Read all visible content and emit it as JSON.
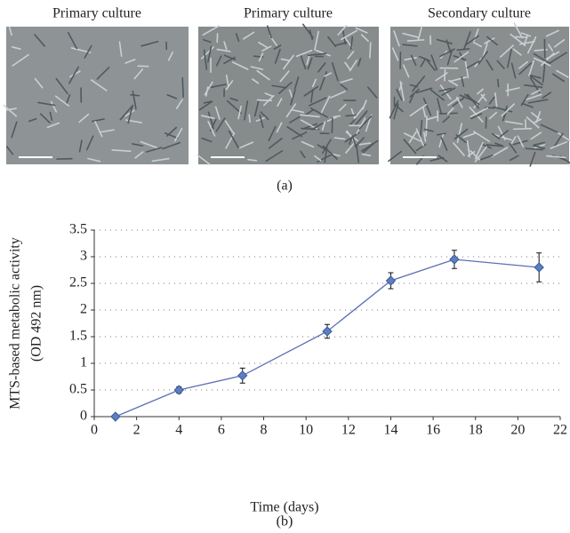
{
  "panel_a": {
    "titles": [
      "Primary culture",
      "Primary culture",
      "Secondary culture"
    ],
    "label": "(a)"
  },
  "panel_b": {
    "label": "(b)"
  },
  "chart_data": {
    "type": "line",
    "y_label": [
      "MTS-based metabolic activity",
      "(OD 492 nm)"
    ],
    "x_label": "Time (days)",
    "x": [
      1,
      4,
      7,
      11,
      14,
      17,
      21
    ],
    "series": [
      {
        "color": "#5b6fb5",
        "values": [
          0,
          0.5,
          0.77,
          1.6,
          2.55,
          2.95,
          2.8
        ],
        "errors": [
          0,
          0.06,
          0.14,
          0.13,
          0.15,
          0.17,
          0.27
        ]
      }
    ],
    "xlim": [
      0,
      22
    ],
    "xticks": [
      0,
      2,
      4,
      6,
      8,
      10,
      12,
      14,
      16,
      18,
      20,
      22
    ],
    "ylim": [
      0,
      3.5
    ],
    "yticks": [
      0,
      0.5,
      1,
      1.5,
      2,
      2.5,
      3,
      3.5
    ],
    "grid": true
  }
}
